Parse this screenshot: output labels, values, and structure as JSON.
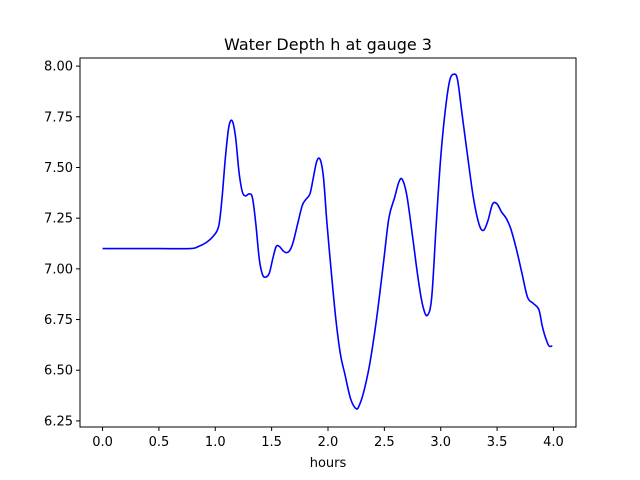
{
  "chart_data": {
    "type": "line",
    "title": "Water Depth h at gauge 3",
    "xlabel": "hours",
    "ylabel": "",
    "xlim": [
      -0.2,
      4.2
    ],
    "ylim": [
      6.22,
      8.04
    ],
    "xticks": [
      0.0,
      0.5,
      1.0,
      1.5,
      2.0,
      2.5,
      3.0,
      3.5,
      4.0
    ],
    "xtick_labels": [
      "0.0",
      "0.5",
      "1.0",
      "1.5",
      "2.0",
      "2.5",
      "3.0",
      "3.5",
      "4.0"
    ],
    "yticks": [
      6.25,
      6.5,
      6.75,
      7.0,
      7.25,
      7.5,
      7.75,
      8.0
    ],
    "ytick_labels": [
      "6.25",
      "6.50",
      "6.75",
      "7.00",
      "7.25",
      "7.50",
      "7.75",
      "8.00"
    ],
    "grid": false,
    "series": [
      {
        "color": "#0000ff",
        "x": [
          0.0,
          0.25,
          0.5,
          0.78,
          0.85,
          0.92,
          0.98,
          1.03,
          1.06,
          1.09,
          1.12,
          1.15,
          1.18,
          1.21,
          1.24,
          1.27,
          1.3,
          1.33,
          1.36,
          1.39,
          1.42,
          1.45,
          1.48,
          1.51,
          1.54,
          1.57,
          1.6,
          1.63,
          1.66,
          1.69,
          1.73,
          1.77,
          1.8,
          1.84,
          1.87,
          1.9,
          1.93,
          1.96,
          1.99,
          2.03,
          2.07,
          2.11,
          2.15,
          2.2,
          2.25,
          2.28,
          2.32,
          2.37,
          2.43,
          2.49,
          2.54,
          2.59,
          2.63,
          2.66,
          2.7,
          2.75,
          2.8,
          2.84,
          2.88,
          2.92,
          2.96,
          3.0,
          3.04,
          3.08,
          3.12,
          3.15,
          3.19,
          3.24,
          3.29,
          3.34,
          3.38,
          3.42,
          3.46,
          3.5,
          3.54,
          3.58,
          3.62,
          3.67,
          3.72,
          3.77,
          3.82,
          3.87,
          3.9,
          3.93,
          3.96,
          3.99
        ],
        "values": [
          7.1,
          7.1,
          7.1,
          7.1,
          7.11,
          7.13,
          7.16,
          7.21,
          7.35,
          7.55,
          7.7,
          7.73,
          7.65,
          7.48,
          7.38,
          7.36,
          7.37,
          7.35,
          7.22,
          7.05,
          6.97,
          6.96,
          6.98,
          7.05,
          7.11,
          7.11,
          7.09,
          7.08,
          7.09,
          7.13,
          7.22,
          7.31,
          7.34,
          7.37,
          7.45,
          7.53,
          7.54,
          7.45,
          7.23,
          6.98,
          6.75,
          6.58,
          6.48,
          6.36,
          6.31,
          6.33,
          6.4,
          6.53,
          6.75,
          7.02,
          7.25,
          7.35,
          7.43,
          7.44,
          7.36,
          7.16,
          6.95,
          6.82,
          6.77,
          6.86,
          7.22,
          7.55,
          7.78,
          7.93,
          7.96,
          7.93,
          7.76,
          7.55,
          7.35,
          7.22,
          7.19,
          7.24,
          7.32,
          7.32,
          7.28,
          7.25,
          7.2,
          7.1,
          6.98,
          6.86,
          6.83,
          6.8,
          6.72,
          6.66,
          6.62,
          6.62
        ]
      }
    ]
  }
}
